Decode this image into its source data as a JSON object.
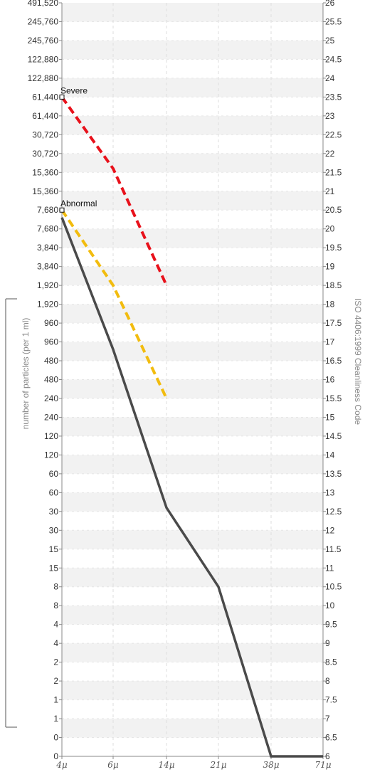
{
  "chart_data": {
    "type": "line",
    "ylabel_left": "number of particles (per 1 ml)",
    "ylabel_right": "ISO 4406:1999 Cleanliness Code",
    "x_ticks": [
      "4μ",
      "6μ",
      "14μ",
      "21μ",
      "38μ",
      "71μ"
    ],
    "left_ticks": [
      "491,520",
      "245,760",
      "245,760",
      "122,880",
      "122,880",
      "61,440",
      "61,440",
      "30,720",
      "30,720",
      "15,360",
      "15,360",
      "7,680",
      "7,680",
      "3,840",
      "3,840",
      "1,920",
      "1,920",
      "960",
      "960",
      "480",
      "480",
      "240",
      "240",
      "120",
      "120",
      "60",
      "60",
      "30",
      "30",
      "15",
      "15",
      "8",
      "8",
      "4",
      "4",
      "2",
      "2",
      "1",
      "1",
      "0",
      "0"
    ],
    "right_ticks": [
      "26",
      "25.5",
      "25",
      "24.5",
      "24",
      "23.5",
      "23",
      "22.5",
      "22",
      "21.5",
      "21",
      "20.5",
      "20",
      "19.5",
      "19",
      "18.5",
      "18",
      "17.5",
      "17",
      "16.5",
      "16",
      "15.5",
      "15",
      "14.5",
      "14",
      "13.5",
      "13",
      "12.5",
      "12",
      "11.5",
      "11",
      "10.5",
      "10",
      "9.5",
      "9",
      "8.5",
      "8",
      "7.5",
      "7",
      "6.5",
      "6"
    ],
    "y_range_code": [
      6,
      26
    ],
    "grid": true,
    "series": [
      {
        "name": "Severe",
        "color": "#e8111b",
        "style": "dashed",
        "x": [
          "4μ",
          "6μ",
          "14μ"
        ],
        "y_code": [
          23.5,
          21.6,
          18.5
        ]
      },
      {
        "name": "Abnormal",
        "color": "#f2bc0e",
        "style": "dashed",
        "x": [
          "4μ",
          "6μ",
          "14μ"
        ],
        "y_code": [
          20.5,
          18.5,
          15.5
        ]
      },
      {
        "color": "#4a4a4a",
        "style": "solid",
        "x": [
          "4μ",
          "6μ",
          "14μ",
          "21μ",
          "38μ",
          "71μ"
        ],
        "y_code": [
          20.3,
          16.8,
          12.6,
          10.5,
          6,
          6
        ]
      }
    ]
  }
}
